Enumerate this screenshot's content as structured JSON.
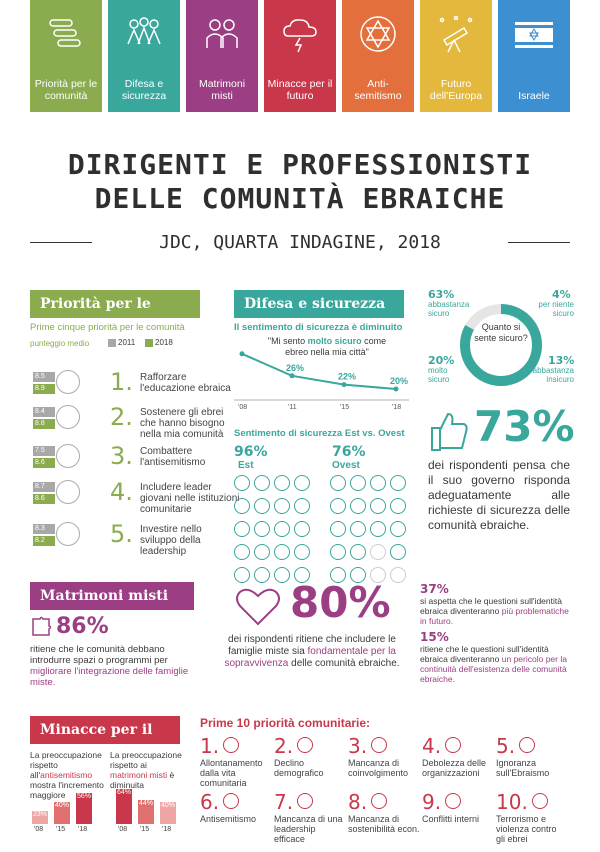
{
  "tabs": [
    {
      "label": "Priorità per le comunità",
      "color": "#8aac4e",
      "icon": "ladder-icon"
    },
    {
      "label": "Difesa e sicurezza",
      "color": "#3aa79d",
      "icon": "people-icon"
    },
    {
      "label": "Matrimoni misti",
      "color": "#9c3e84",
      "icon": "couple-icon"
    },
    {
      "label": "Minacce per il futuro",
      "color": "#c8384a",
      "icon": "storm-icon"
    },
    {
      "label": "Anti-semitismo",
      "color": "#e36f3c",
      "icon": "star-of-david-icon"
    },
    {
      "label": "Futuro dell'Europa",
      "color": "#e3b83c",
      "icon": "telescope-icon"
    },
    {
      "label": "Israele",
      "color": "#3c8fd0",
      "icon": "israel-flag-icon"
    }
  ],
  "title_line1": "DIRIGENTI E PROFESSIONISTI",
  "title_line2": "DELLE COMUNITÀ EBRAICHE",
  "subtitle": "JDC, QUARTA INDAGINE, 2018",
  "priorita": {
    "header": "Priorità per le comunità",
    "caption": "Prime cinque priorità per le comunità",
    "caption2": "punteggio medio",
    "legend_2011": "2011",
    "legend_2018": "2018",
    "items": [
      {
        "rank": "1.",
        "v2011": "8.5",
        "v2018": "8.9",
        "text": "Rafforzare l'educazione ebraica"
      },
      {
        "rank": "2.",
        "v2011": "8.4",
        "v2018": "8.8",
        "text": "Sostenere gli ebrei che hanno bisogno nella mia comunità"
      },
      {
        "rank": "3.",
        "v2011": "7.5",
        "v2018": "8.6",
        "text": "Combattere l'antisemitismo"
      },
      {
        "rank": "4.",
        "v2011": "8.7",
        "v2018": "8.6",
        "text": "Includere leader giovani nelle istituzioni comunitarie"
      },
      {
        "rank": "5.",
        "v2011": "8.3",
        "v2018": "8.2",
        "text": "Investire nello sviluppo della leadership"
      }
    ]
  },
  "difesa": {
    "header": "Difesa e sicurezza",
    "caption": "Il sentimento di sicurezza è diminuito",
    "quote_pre": "\"Mi sento ",
    "quote_bold": "molto sicuro",
    "quote_post": " come ebreo nella mia città\"",
    "years": [
      "'08",
      "'11",
      "'15",
      "'18"
    ],
    "values": [
      "36%",
      "26%",
      "22%",
      "20%"
    ],
    "estovest": "Sentimento di sicurezza Est vs. Ovest",
    "est_pct": "96%",
    "est_label": "Est",
    "ovest_pct": "76%",
    "ovest_label": "Ovest"
  },
  "donut": {
    "center": "Quanto si sente sicuro?",
    "a_pct": "63%",
    "a_label": "abbastanza sicuro",
    "b_pct": "4%",
    "b_label": "per niente sicuro",
    "c_pct": "20%",
    "c_label": "molto sicuro",
    "d_pct": "13%",
    "d_label": "abbastanza insicuro"
  },
  "governo": {
    "pct": "73%",
    "text": "dei rispondenti pensa che il suo governo risponda adeguatamente alle richieste di sicurezza delle comunità ebraiche."
  },
  "matrimoni": {
    "header": "Matrimoni misti",
    "pct": "86%",
    "text_pre": "ritiene che le comunità debbano introdurre spazi o programmi per ",
    "text_hl": "migliorare l'integrazione delle famiglie miste.",
    "big_pct": "80%",
    "big_pre": "dei rispondenti ritiene che includere le famiglie miste sia ",
    "big_hl": "fondamentale per la sopravvivenza",
    "big_post": " delle comunità ebraiche.",
    "r1_pct": "37%",
    "r1_pre": "si aspetta che le questioni sull'identità ebraica diventeranno ",
    "r1_hl": "più problematiche in futuro.",
    "r2_pct": "15%",
    "r2_pre": "ritiene che le questioni sull'identità ebraica diventeranno ",
    "r2_hl": "un pericolo per la continuità dell'esistenza delle comunità ebraiche."
  },
  "minacce": {
    "header": "Minacce per il futuro",
    "left_pre": "La preoccupazione rispetto all'",
    "left_hl": "antisemitismo",
    "left_post": " mostra l'incremento maggiore",
    "right_pre": "La preoccupazione rispetto ai ",
    "right_hl": "matrimoni misti",
    "right_post": " è diminuita",
    "years": [
      "'08",
      "'15",
      "'18"
    ],
    "anti": [
      "23%",
      "40%",
      "56%"
    ],
    "mixed": [
      "64%",
      "44%",
      "40%"
    ]
  },
  "top10": {
    "header": "Prime 10 priorità comunitarie:",
    "items": [
      {
        "n": "1.",
        "t": "Allontanamento dalla vita comunitaria"
      },
      {
        "n": "2.",
        "t": "Declino demografico"
      },
      {
        "n": "3.",
        "t": "Mancanza di coinvolgimento"
      },
      {
        "n": "4.",
        "t": "Debolezza delle organizzazioni"
      },
      {
        "n": "5.",
        "t": "Ignoranza sull'Ebraismo"
      },
      {
        "n": "6.",
        "t": "Antisemitismo"
      },
      {
        "n": "7.",
        "t": "Mancanza di una leadership efficace"
      },
      {
        "n": "8.",
        "t": "Mancanza di sostenibilità econ."
      },
      {
        "n": "9.",
        "t": "Conflitti interni"
      },
      {
        "n": "10.",
        "t": "Terrorismo e violenza contro gli ebrei"
      }
    ]
  }
}
